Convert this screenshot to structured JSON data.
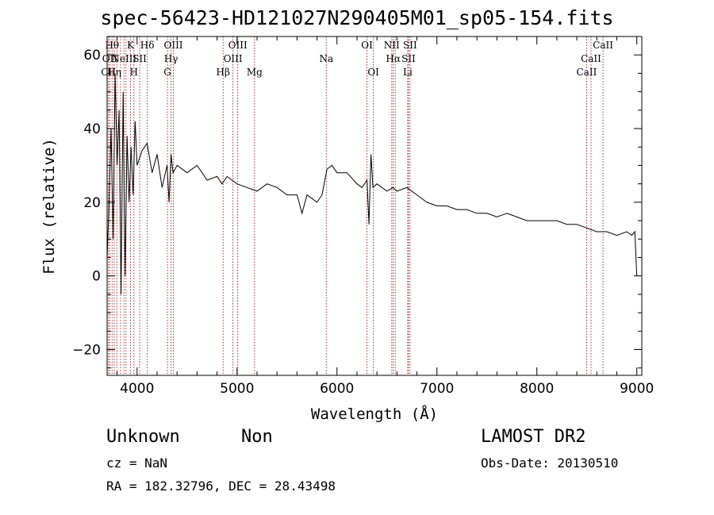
{
  "chart_data": {
    "type": "line",
    "title": "spec-56423-HD121027N290405M01_sp05-154.fits",
    "xlabel": "Wavelength (Å)",
    "ylabel": "Flux (relative)",
    "xlim": [
      3700,
      9050
    ],
    "ylim": [
      -27,
      65
    ],
    "xticks": [
      4000,
      5000,
      6000,
      7000,
      8000,
      9000
    ],
    "yticks": [
      -20,
      0,
      20,
      40,
      60
    ],
    "grid": false,
    "line_color": "#000000",
    "marker_color": "#b03030",
    "series": [
      {
        "x": [
          3700,
          3720,
          3740,
          3760,
          3780,
          3800,
          3820,
          3840,
          3860,
          3880,
          3900,
          3920,
          3940,
          3960,
          3980,
          4000,
          4050,
          4100,
          4150,
          4200,
          4250,
          4300,
          4320,
          4340,
          4360,
          4400,
          4500,
          4600,
          4700,
          4800,
          4850,
          4900,
          5000,
          5100,
          5200,
          5300,
          5400,
          5500,
          5600,
          5650,
          5700,
          5750,
          5800,
          5850,
          5900,
          5950,
          6000,
          6100,
          6200,
          6250,
          6300,
          6320,
          6340,
          6360,
          6400,
          6500,
          6560,
          6600,
          6700,
          6800,
          6900,
          7000,
          7100,
          7200,
          7300,
          7400,
          7500,
          7600,
          7700,
          7800,
          7900,
          8000,
          8100,
          8200,
          8300,
          8400,
          8500,
          8600,
          8700,
          8800,
          8900,
          8950,
          8980,
          9000
        ],
        "y": [
          5,
          20,
          40,
          10,
          55,
          30,
          45,
          -5,
          50,
          0,
          38,
          20,
          35,
          22,
          42,
          30,
          34,
          36,
          28,
          33,
          24,
          30,
          20,
          33,
          28,
          30,
          28,
          30,
          26,
          27,
          25,
          27,
          25,
          24,
          23,
          25,
          24,
          22,
          22,
          17,
          22,
          21,
          20,
          22,
          29,
          30,
          28,
          28,
          25,
          24,
          26,
          14,
          33,
          24,
          25,
          23,
          24,
          23,
          24,
          22,
          20,
          19,
          19,
          18,
          18,
          17,
          17,
          16,
          17,
          16,
          15,
          15,
          15,
          15,
          14,
          14,
          13,
          12,
          12,
          11,
          12,
          11,
          12,
          0
        ]
      }
    ],
    "lines": [
      {
        "x": 3713,
        "label": "CII",
        "row": 2
      },
      {
        "x": 3727,
        "label": "OII",
        "row": 1
      },
      {
        "x": 3750,
        "label": "Hθ",
        "row": 0
      },
      {
        "x": 3771,
        "label": "Hη",
        "row": 2
      },
      {
        "x": 3798,
        "label": "",
        "row": 0
      },
      {
        "x": 3835,
        "label": "",
        "row": 0
      },
      {
        "x": 3869,
        "label": "NeIII",
        "row": 1
      },
      {
        "x": 3889,
        "label": "",
        "row": 0
      },
      {
        "x": 3934,
        "label": "K",
        "row": 0
      },
      {
        "x": 3968,
        "label": "H",
        "row": 2
      },
      {
        "x": 4026,
        "label": "SII",
        "row": 1
      },
      {
        "x": 4102,
        "label": "Hδ",
        "row": 0
      },
      {
        "x": 4304,
        "label": "G",
        "row": 2
      },
      {
        "x": 4340,
        "label": "Hγ",
        "row": 1
      },
      {
        "x": 4363,
        "label": "OIII",
        "row": 0
      },
      {
        "x": 4861,
        "label": "Hβ",
        "row": 2
      },
      {
        "x": 4959,
        "label": "OIII",
        "row": 1
      },
      {
        "x": 5007,
        "label": "OIII",
        "row": 0
      },
      {
        "x": 5175,
        "label": "Mg",
        "row": 2
      },
      {
        "x": 5893,
        "label": "Na",
        "row": 1
      },
      {
        "x": 6300,
        "label": "OI",
        "row": 0
      },
      {
        "x": 6364,
        "label": "OI",
        "row": 2
      },
      {
        "x": 6548,
        "label": "NII",
        "row": 0
      },
      {
        "x": 6563,
        "label": "Hα",
        "row": 1
      },
      {
        "x": 6583,
        "label": "",
        "row": 0
      },
      {
        "x": 6708,
        "label": "Li",
        "row": 2
      },
      {
        "x": 6716,
        "label": "SII",
        "row": 1
      },
      {
        "x": 6731,
        "label": "SII",
        "row": 0
      },
      {
        "x": 8498,
        "label": "CaII",
        "row": 2
      },
      {
        "x": 8542,
        "label": "CaII",
        "row": 1
      },
      {
        "x": 8662,
        "label": "CaII",
        "row": 0
      }
    ]
  },
  "info": {
    "class_label": "Unknown",
    "subclass_label": "Non",
    "survey": "LAMOST DR2",
    "redshift_text": "cz = NaN",
    "obs_date_text": "Obs-Date: 20130510",
    "coords_text": "RA = 182.32796, DEC =  28.43498"
  }
}
